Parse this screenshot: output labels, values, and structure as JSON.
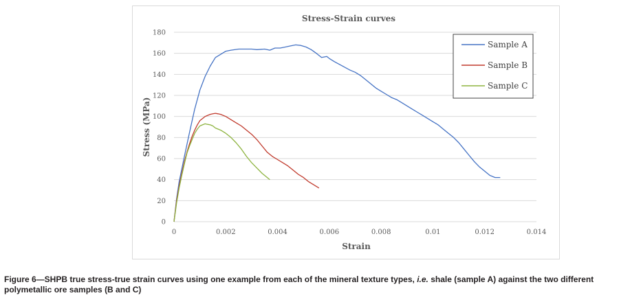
{
  "chart_data": {
    "type": "line",
    "title": "Stress-Strain curves",
    "xlabel": "Strain",
    "ylabel": "Stress (MPa)",
    "xlim": [
      0,
      0.014
    ],
    "ylim": [
      0,
      180
    ],
    "x_ticks": [
      "0",
      "0.002",
      "0.004",
      "0.006",
      "0.008",
      "0.01",
      "0.012",
      "0.014"
    ],
    "y_ticks": [
      "0",
      "20",
      "40",
      "60",
      "80",
      "100",
      "120",
      "140",
      "160",
      "180"
    ],
    "grid": "horizontal",
    "legend_position": "top-right",
    "series": [
      {
        "name": "Sample A",
        "color": "#4472c4",
        "points": [
          [
            0,
            0
          ],
          [
            0.0001,
            22
          ],
          [
            0.0002,
            38
          ],
          [
            0.0004,
            62
          ],
          [
            0.0006,
            85
          ],
          [
            0.0008,
            107
          ],
          [
            0.001,
            125
          ],
          [
            0.0012,
            138
          ],
          [
            0.0014,
            148
          ],
          [
            0.0016,
            156
          ],
          [
            0.0018,
            159
          ],
          [
            0.002,
            162
          ],
          [
            0.0022,
            163
          ],
          [
            0.0025,
            164
          ],
          [
            0.0028,
            164
          ],
          [
            0.003,
            164
          ],
          [
            0.0032,
            163.5
          ],
          [
            0.0035,
            164
          ],
          [
            0.0037,
            163
          ],
          [
            0.0039,
            165
          ],
          [
            0.0041,
            165
          ],
          [
            0.0043,
            166
          ],
          [
            0.0045,
            167
          ],
          [
            0.0047,
            168
          ],
          [
            0.0049,
            167.5
          ],
          [
            0.0051,
            166
          ],
          [
            0.0053,
            163.5
          ],
          [
            0.0055,
            160
          ],
          [
            0.0057,
            156
          ],
          [
            0.0059,
            157
          ],
          [
            0.006,
            155
          ],
          [
            0.0062,
            152
          ],
          [
            0.0065,
            148
          ],
          [
            0.0068,
            144
          ],
          [
            0.007,
            142
          ],
          [
            0.0072,
            139
          ],
          [
            0.0074,
            135
          ],
          [
            0.0076,
            131
          ],
          [
            0.0078,
            127
          ],
          [
            0.008,
            124
          ],
          [
            0.0082,
            121
          ],
          [
            0.0084,
            118
          ],
          [
            0.0086,
            116
          ],
          [
            0.0088,
            113
          ],
          [
            0.009,
            110
          ],
          [
            0.0092,
            107
          ],
          [
            0.0094,
            104
          ],
          [
            0.0096,
            101
          ],
          [
            0.0098,
            98
          ],
          [
            0.01,
            95
          ],
          [
            0.0102,
            92
          ],
          [
            0.0104,
            88
          ],
          [
            0.0106,
            84
          ],
          [
            0.0108,
            80
          ],
          [
            0.011,
            75
          ],
          [
            0.0112,
            69
          ],
          [
            0.0114,
            63
          ],
          [
            0.0116,
            57
          ],
          [
            0.0118,
            52
          ],
          [
            0.012,
            48
          ],
          [
            0.0122,
            44
          ],
          [
            0.0124,
            42
          ],
          [
            0.0126,
            42
          ]
        ]
      },
      {
        "name": "Sample B",
        "color": "#c0392b",
        "points": [
          [
            0,
            0
          ],
          [
            0.0001,
            20
          ],
          [
            0.0002,
            34
          ],
          [
            0.0003,
            46
          ],
          [
            0.0004,
            57
          ],
          [
            0.0005,
            66
          ],
          [
            0.0006,
            74
          ],
          [
            0.0007,
            81
          ],
          [
            0.0008,
            87
          ],
          [
            0.0009,
            92
          ],
          [
            0.001,
            96
          ],
          [
            0.0011,
            98
          ],
          [
            0.0012,
            100
          ],
          [
            0.0013,
            101
          ],
          [
            0.0014,
            102
          ],
          [
            0.0015,
            102.5
          ],
          [
            0.0016,
            103
          ],
          [
            0.0017,
            102.5
          ],
          [
            0.0018,
            102
          ],
          [
            0.002,
            100
          ],
          [
            0.0022,
            97
          ],
          [
            0.0024,
            94
          ],
          [
            0.0026,
            91
          ],
          [
            0.0028,
            87
          ],
          [
            0.003,
            83
          ],
          [
            0.0032,
            78
          ],
          [
            0.0034,
            72
          ],
          [
            0.0036,
            66
          ],
          [
            0.0038,
            62
          ],
          [
            0.004,
            59
          ],
          [
            0.0042,
            56
          ],
          [
            0.0044,
            53
          ],
          [
            0.0046,
            49
          ],
          [
            0.0048,
            45
          ],
          [
            0.005,
            42
          ],
          [
            0.0052,
            38
          ],
          [
            0.0054,
            35
          ],
          [
            0.0056,
            32
          ]
        ]
      },
      {
        "name": "Sample C",
        "color": "#8db33f",
        "points": [
          [
            0,
            0
          ],
          [
            0.0001,
            18
          ],
          [
            0.0002,
            32
          ],
          [
            0.0003,
            44
          ],
          [
            0.0004,
            55
          ],
          [
            0.0005,
            65
          ],
          [
            0.0006,
            72
          ],
          [
            0.0007,
            78
          ],
          [
            0.0008,
            84
          ],
          [
            0.0009,
            88
          ],
          [
            0.001,
            91
          ],
          [
            0.0011,
            92
          ],
          [
            0.0012,
            93
          ],
          [
            0.0013,
            92.5
          ],
          [
            0.0014,
            92
          ],
          [
            0.0015,
            91
          ],
          [
            0.0016,
            89
          ],
          [
            0.0018,
            87
          ],
          [
            0.002,
            84
          ],
          [
            0.0022,
            80
          ],
          [
            0.0024,
            75
          ],
          [
            0.0026,
            69
          ],
          [
            0.0028,
            62
          ],
          [
            0.003,
            56
          ],
          [
            0.0032,
            51
          ],
          [
            0.0034,
            46
          ],
          [
            0.0036,
            42
          ],
          [
            0.0037,
            40
          ]
        ]
      }
    ]
  },
  "caption": {
    "lead": "Figure 6—SHPB true stress-true strain curves using one example from each of the mineral texture types, ",
    "italic": "i.e.",
    "tail": " shale (sample A) against the two different polymetallic ore samples (B and C)"
  }
}
